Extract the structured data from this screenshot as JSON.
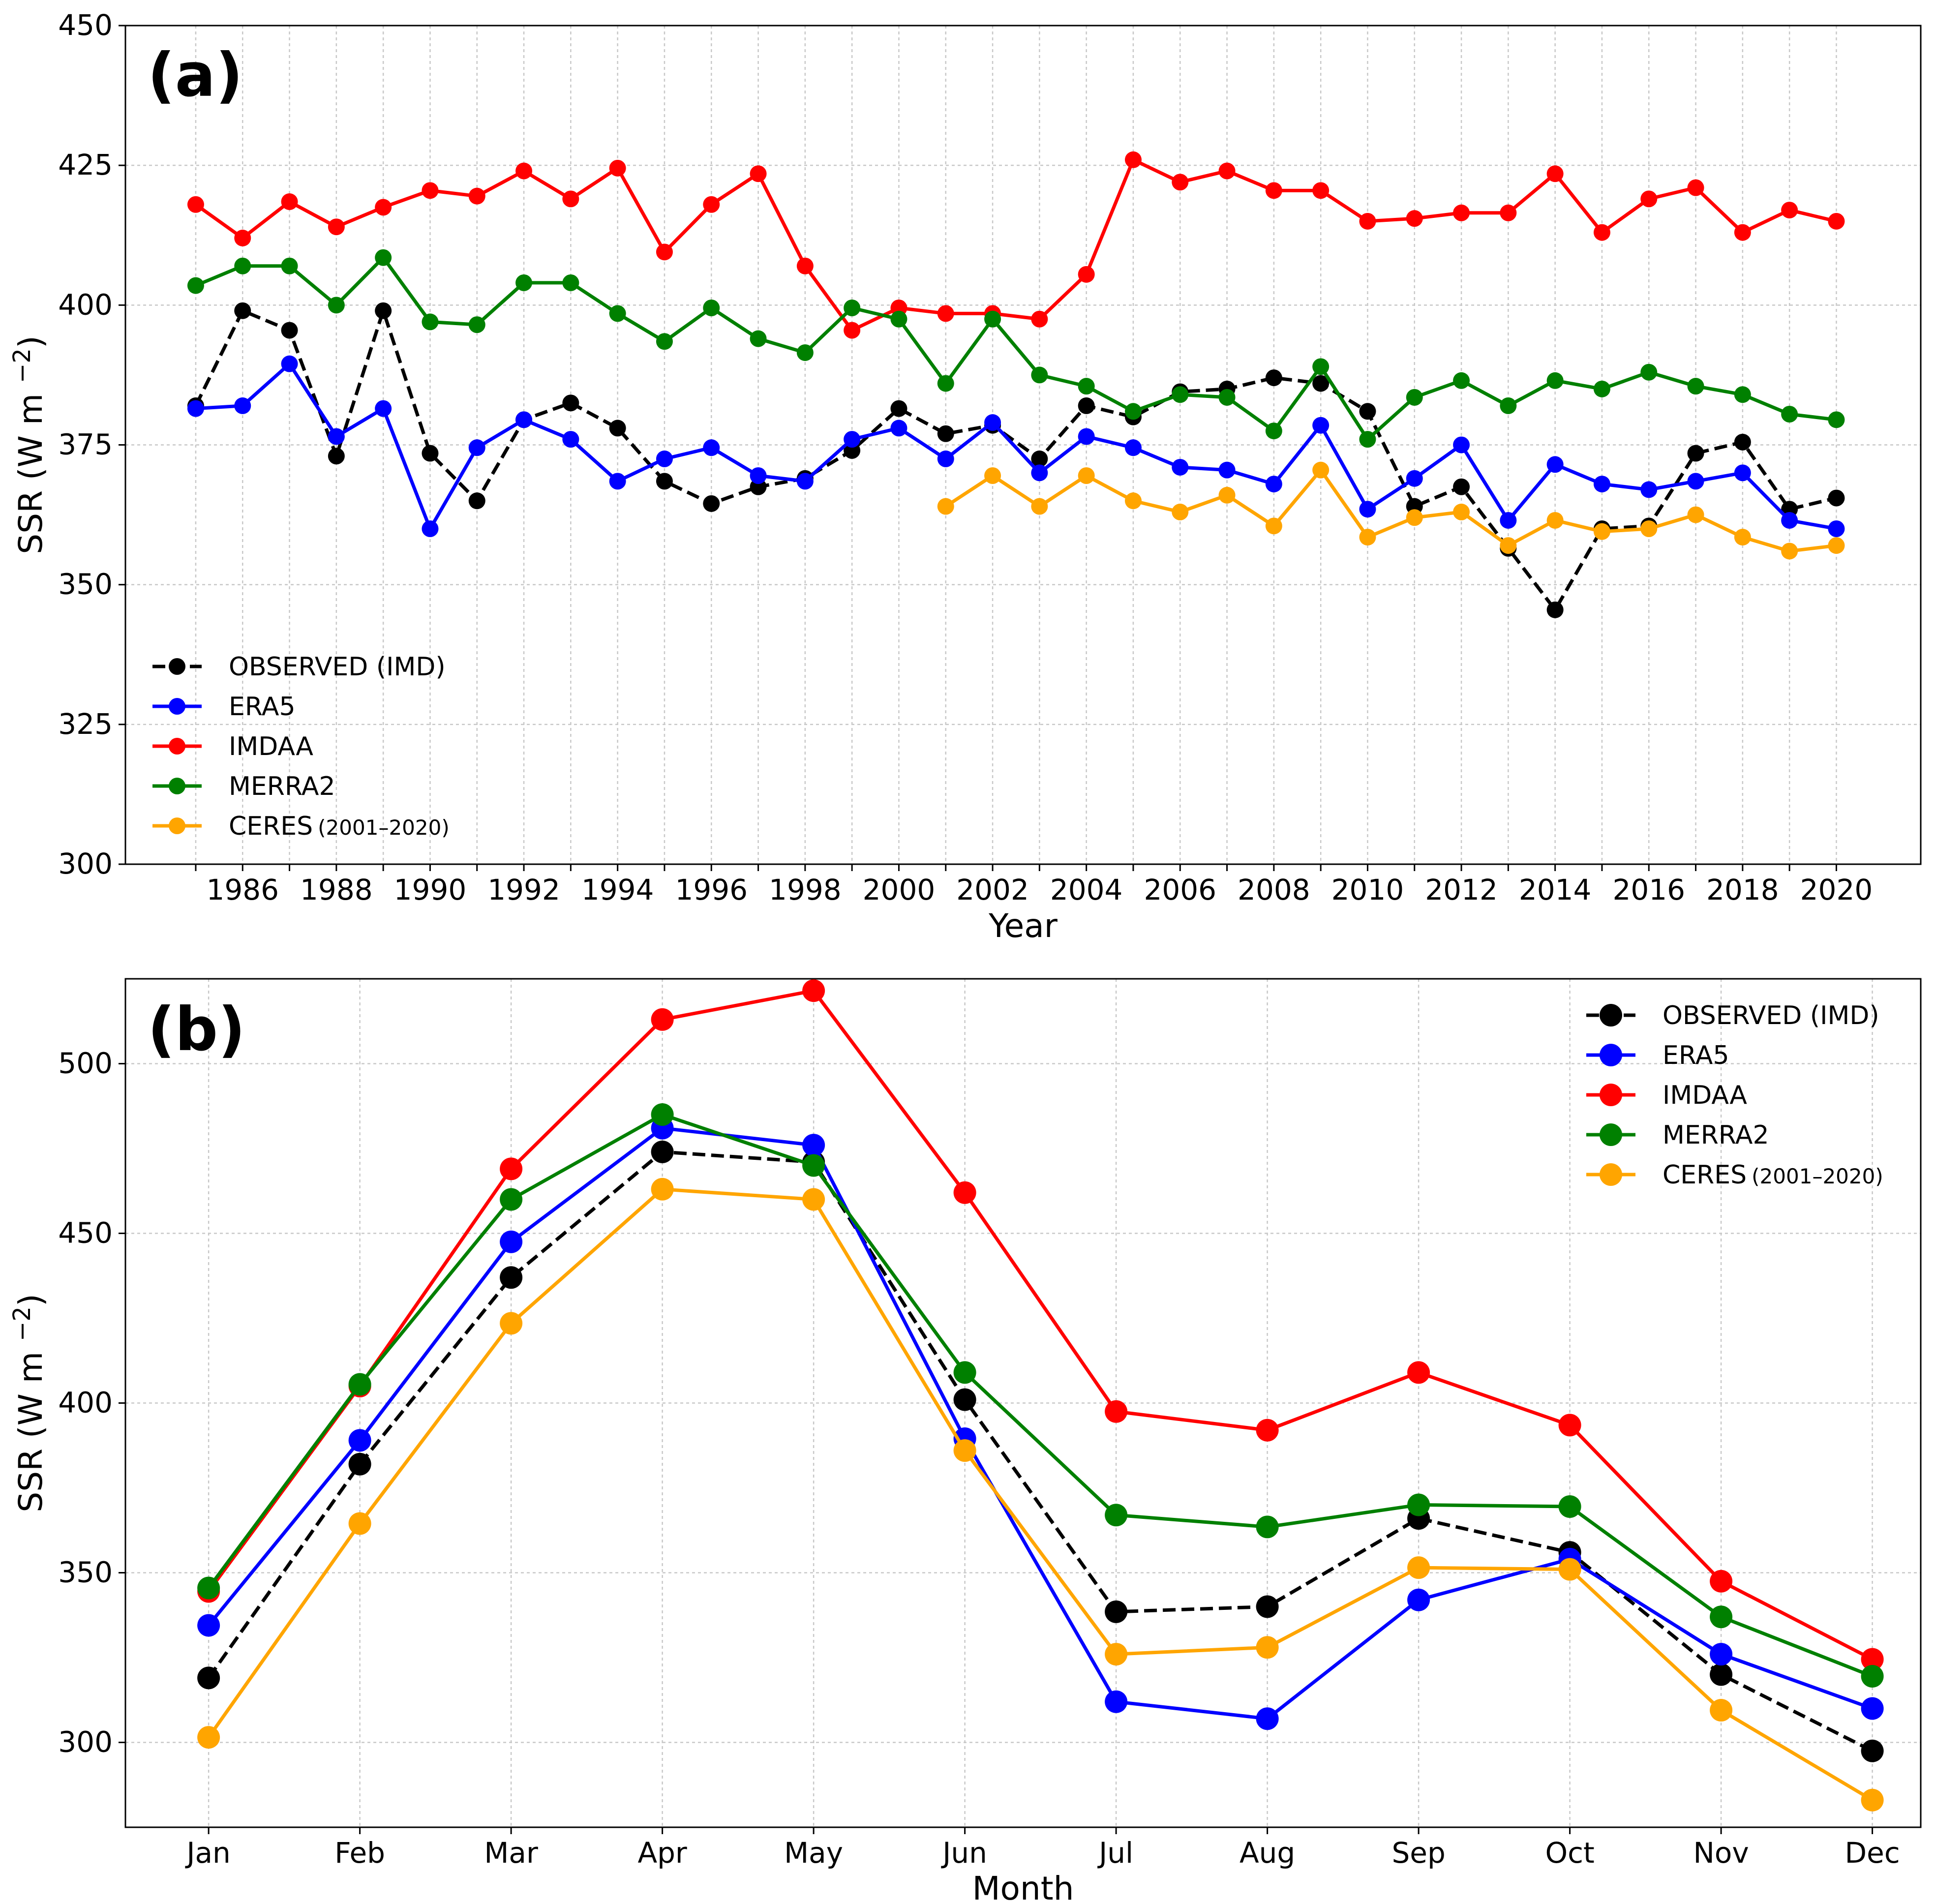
{
  "chart_data": [
    {
      "type": "line",
      "panel_label": "(a)",
      "title": "",
      "xlabel": "Year",
      "ylabel": "SSR (W m",
      "ylabel_sup": "−2",
      "ylabel_close": ")",
      "xlim": [
        1983.5,
        2021.8
      ],
      "ylim": [
        300,
        450
      ],
      "xticks": [
        1986,
        1988,
        1990,
        1992,
        1994,
        1996,
        1998,
        2000,
        2002,
        2004,
        2006,
        2008,
        2010,
        2012,
        2014,
        2016,
        2018,
        2020
      ],
      "xtick_labels": [
        "1986",
        "1988",
        "1990",
        "1992",
        "1994",
        "1996",
        "1998",
        "2000",
        "2002",
        "2004",
        "2006",
        "2008",
        "2010",
        "2012",
        "2014",
        "2016",
        "2018",
        "2020"
      ],
      "minor_grid_x": [
        1985,
        1987,
        1989,
        1991,
        1993,
        1995,
        1997,
        1999,
        2001,
        2003,
        2005,
        2007,
        2009,
        2011,
        2013,
        2015,
        2017,
        2019
      ],
      "yticks": [
        300,
        325,
        350,
        375,
        400,
        425,
        450
      ],
      "ytick_labels": [
        "300",
        "325",
        "350",
        "375",
        "400",
        "425",
        "450"
      ],
      "grid": true,
      "legend_position": "lower-left",
      "series": [
        {
          "name": "OBSERVED (IMD)",
          "label_main": "OBSERVED (IMD)",
          "label_sub": "",
          "color": "#000000",
          "dashed": true,
          "x": [
            1985,
            1986,
            1987,
            1988,
            1989,
            1990,
            1991,
            1992,
            1993,
            1994,
            1995,
            1996,
            1997,
            1998,
            1999,
            2000,
            2001,
            2002,
            2003,
            2004,
            2005,
            2006,
            2007,
            2008,
            2009,
            2010,
            2011,
            2012,
            2013,
            2014,
            2015,
            2016,
            2017,
            2018,
            2019,
            2020
          ],
          "values": [
            382,
            399,
            395.5,
            373,
            399,
            373.5,
            365,
            379.5,
            382.5,
            378,
            368.5,
            364.5,
            367.5,
            369,
            374,
            381.5,
            377,
            378.5,
            372.5,
            382,
            380,
            384.5,
            385,
            387,
            386,
            381,
            364,
            367.5,
            356.5,
            345.5,
            360,
            360.5,
            373.5,
            375.5,
            363.5,
            365.5
          ]
        },
        {
          "name": "ERA5",
          "label_main": "ERA5",
          "label_sub": "",
          "color": "#0000ff",
          "dashed": false,
          "x": [
            1985,
            1986,
            1987,
            1988,
            1989,
            1990,
            1991,
            1992,
            1993,
            1994,
            1995,
            1996,
            1997,
            1998,
            1999,
            2000,
            2001,
            2002,
            2003,
            2004,
            2005,
            2006,
            2007,
            2008,
            2009,
            2010,
            2011,
            2012,
            2013,
            2014,
            2015,
            2016,
            2017,
            2018,
            2019,
            2020
          ],
          "values": [
            381.5,
            382,
            389.5,
            376.5,
            381.5,
            360,
            374.5,
            379.5,
            376,
            368.5,
            372.5,
            374.5,
            369.5,
            368.5,
            376,
            378,
            372.5,
            379,
            370,
            376.5,
            374.5,
            371,
            370.5,
            368,
            378.5,
            363.5,
            369,
            375,
            361.5,
            371.5,
            368,
            367,
            368.5,
            370,
            361.5,
            360
          ]
        },
        {
          "name": "IMDAA",
          "label_main": "IMDAA",
          "label_sub": "",
          "color": "#ff0000",
          "dashed": false,
          "x": [
            1985,
            1986,
            1987,
            1988,
            1989,
            1990,
            1991,
            1992,
            1993,
            1994,
            1995,
            1996,
            1997,
            1998,
            1999,
            2000,
            2001,
            2002,
            2003,
            2004,
            2005,
            2006,
            2007,
            2008,
            2009,
            2010,
            2011,
            2012,
            2013,
            2014,
            2015,
            2016,
            2017,
            2018,
            2019,
            2020
          ],
          "values": [
            418,
            412,
            418.5,
            414,
            417.5,
            420.5,
            419.5,
            424,
            419,
            424.5,
            409.5,
            418,
            423.5,
            407,
            395.5,
            399.5,
            398.5,
            398.5,
            397.5,
            405.5,
            426,
            422,
            424,
            420.5,
            420.5,
            415,
            415.5,
            416.5,
            416.5,
            423.5,
            413,
            419,
            421,
            413,
            417,
            415
          ]
        },
        {
          "name": "MERRA2",
          "label_main": "MERRA2",
          "label_sub": "",
          "color": "#008000",
          "dashed": false,
          "x": [
            1985,
            1986,
            1987,
            1988,
            1989,
            1990,
            1991,
            1992,
            1993,
            1994,
            1995,
            1996,
            1997,
            1998,
            1999,
            2000,
            2001,
            2002,
            2003,
            2004,
            2005,
            2006,
            2007,
            2008,
            2009,
            2010,
            2011,
            2012,
            2013,
            2014,
            2015,
            2016,
            2017,
            2018,
            2019,
            2020
          ],
          "values": [
            403.5,
            407,
            407,
            400,
            408.5,
            397,
            396.5,
            404,
            404,
            398.5,
            393.5,
            399.5,
            394,
            391.5,
            399.5,
            397.5,
            386,
            397.5,
            387.5,
            385.5,
            381,
            384,
            383.5,
            377.5,
            389,
            376,
            383.5,
            386.5,
            382,
            386.5,
            385,
            388,
            385.5,
            384,
            380.5,
            379.5
          ]
        },
        {
          "name": "CERES (2001–2020)",
          "label_main": "CERES",
          "label_sub": "(2001–2020)",
          "color": "#ffa500",
          "dashed": false,
          "x": [
            2001,
            2002,
            2003,
            2004,
            2005,
            2006,
            2007,
            2008,
            2009,
            2010,
            2011,
            2012,
            2013,
            2014,
            2015,
            2016,
            2017,
            2018,
            2019,
            2020
          ],
          "values": [
            364,
            369.5,
            364,
            369.5,
            365,
            363,
            366,
            360.5,
            370.5,
            358.5,
            362,
            363,
            357,
            361.5,
            359.5,
            360,
            362.5,
            358.5,
            356,
            357
          ]
        }
      ]
    },
    {
      "type": "line",
      "panel_label": "(b)",
      "title": "",
      "xlabel": "Month",
      "ylabel": "SSR (W m",
      "ylabel_sup": "−2",
      "ylabel_close": ")",
      "categories": [
        "Jan",
        "Feb",
        "Mar",
        "Apr",
        "May",
        "Jun",
        "Jul",
        "Aug",
        "Sep",
        "Oct",
        "Nov",
        "Dec"
      ],
      "xlim": [
        -0.55,
        11.32
      ],
      "ylim": [
        275,
        525
      ],
      "yticks": [
        300,
        350,
        400,
        450,
        500
      ],
      "ytick_labels": [
        "300",
        "350",
        "400",
        "450",
        "500"
      ],
      "grid": true,
      "legend_position": "top-right",
      "series": [
        {
          "name": "OBSERVED (IMD)",
          "label_main": "OBSERVED (IMD)",
          "label_sub": "",
          "color": "#000000",
          "dashed": true,
          "values": [
            319,
            382,
            437,
            474,
            471,
            401,
            338.5,
            340,
            366,
            356,
            320,
            297.5
          ]
        },
        {
          "name": "ERA5",
          "label_main": "ERA5",
          "label_sub": "",
          "color": "#0000ff",
          "dashed": false,
          "values": [
            334.5,
            389,
            447.5,
            481,
            476,
            389.5,
            312,
            307,
            342,
            354,
            326,
            310
          ]
        },
        {
          "name": "IMDAA",
          "label_main": "IMDAA",
          "label_sub": "",
          "color": "#ff0000",
          "dashed": false,
          "values": [
            344.5,
            405,
            469,
            513,
            521.5,
            462,
            397.5,
            392,
            409,
            393.5,
            347.5,
            324.5
          ]
        },
        {
          "name": "MERRA2",
          "label_main": "MERRA2",
          "label_sub": "",
          "color": "#008000",
          "dashed": false,
          "values": [
            345.5,
            405.5,
            460,
            485,
            470,
            409,
            367,
            363.5,
            370,
            369.5,
            337,
            319.5
          ]
        },
        {
          "name": "CERES(2001–2020)",
          "label_main": "CERES",
          "label_sub": "(2001–2020)",
          "color": "#ffa500",
          "dashed": false,
          "values": [
            301.5,
            364.5,
            423.5,
            463,
            460,
            386,
            326,
            328,
            351.5,
            351,
            309.5,
            283
          ]
        }
      ]
    }
  ]
}
